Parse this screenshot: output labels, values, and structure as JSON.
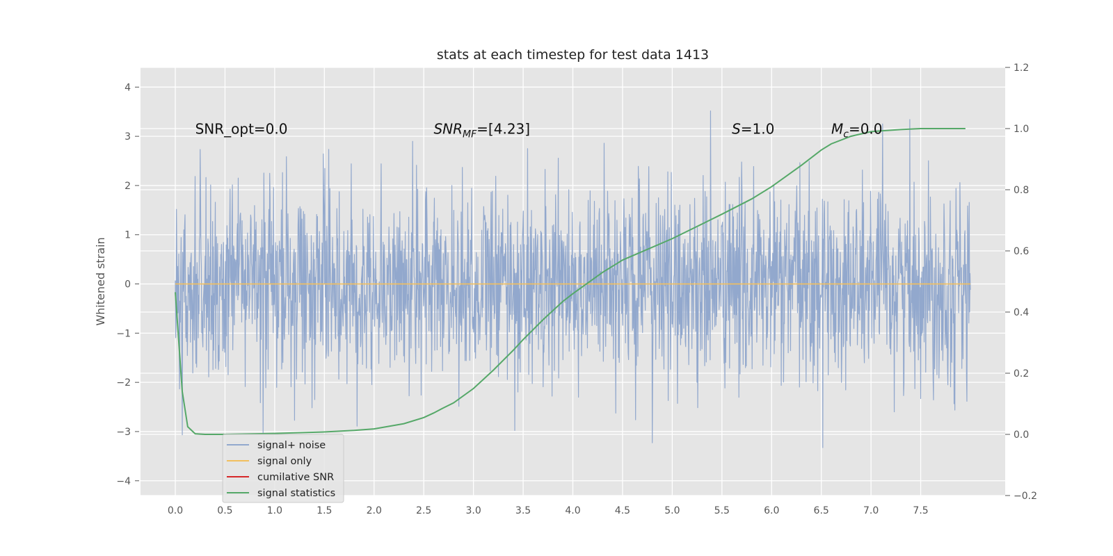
{
  "chart_data": {
    "type": "line",
    "title": "stats at each timestep for test data 1413",
    "ylabel": "Whitened strain",
    "xlim": [
      -0.35,
      8.35
    ],
    "ylim": [
      -4.3,
      4.4
    ],
    "y2lim": [
      -0.2,
      1.2
    ],
    "grid": true,
    "x_ticks": [
      "0.0",
      "0.5",
      "1.0",
      "1.5",
      "2.0",
      "2.5",
      "3.0",
      "3.5",
      "4.0",
      "4.5",
      "5.0",
      "5.5",
      "6.0",
      "6.5",
      "7.0",
      "7.5"
    ],
    "y_ticks": [
      "4",
      "3",
      "2",
      "1",
      "0",
      "−1",
      "−2",
      "−3",
      "−4"
    ],
    "y2_ticks": [
      "1.2",
      "1.0",
      "0.8",
      "0.6",
      "0.4",
      "0.2",
      "0.0",
      "−0.2"
    ],
    "annotations": [
      {
        "text": "SNR_opt=0.0",
        "x": 0.2,
        "y": 3.15
      },
      {
        "text": "SNR_MF=[4.23]",
        "x": 2.6,
        "y": 3.15,
        "main": "SNR",
        "sub": "MF",
        "rest": "=[4.23]"
      },
      {
        "text": "S=1.0",
        "x": 5.6,
        "y": 3.15,
        "main": "S",
        "sub": "",
        "rest": "=1.0"
      },
      {
        "text": "M_c=0.0",
        "x": 6.6,
        "y": 3.15,
        "main": "M",
        "sub": "c",
        "rest": "=0.0"
      }
    ],
    "series": [
      {
        "name": "signal+ noise",
        "axis": "left",
        "color": "#92a8cd",
        "noise_std": 1.0,
        "x_range": [
          0.0,
          8.0
        ],
        "description_samples": 2048
      },
      {
        "name": "signal only",
        "axis": "left",
        "color": "#f2bf5e",
        "x": [
          0.0,
          8.0
        ],
        "y": [
          0.0,
          0.0
        ]
      },
      {
        "name": "cumilative SNR",
        "axis": "right",
        "color": "#d62728",
        "x": [],
        "y": []
      },
      {
        "name": "signal statistics",
        "axis": "right",
        "color": "#55a868",
        "x": [
          0.0,
          0.07,
          0.125,
          0.2,
          0.3,
          0.5,
          1.0,
          1.5,
          1.8,
          2.0,
          2.3,
          2.5,
          2.6,
          2.7,
          2.8,
          3.0,
          3.2,
          3.4,
          3.5,
          3.7,
          3.9,
          4.0,
          4.3,
          4.5,
          5.0,
          5.5,
          5.8,
          6.0,
          6.3,
          6.5,
          6.6,
          6.8,
          7.0,
          7.3,
          7.5,
          7.95
        ],
        "y": [
          0.465,
          0.14,
          0.025,
          0.002,
          0.0,
          0.0,
          0.003,
          0.008,
          0.013,
          0.018,
          0.035,
          0.055,
          0.07,
          0.087,
          0.103,
          0.15,
          0.21,
          0.275,
          0.31,
          0.375,
          0.435,
          0.46,
          0.53,
          0.57,
          0.64,
          0.72,
          0.77,
          0.81,
          0.88,
          0.93,
          0.95,
          0.975,
          0.99,
          0.997,
          1.0,
          1.0
        ]
      }
    ],
    "legend": {
      "position": "lower-left",
      "entries": [
        {
          "label": "signal+ noise",
          "color": "#92a8cd"
        },
        {
          "label": "signal only",
          "color": "#f2bf5e"
        },
        {
          "label": "cumilative SNR",
          "color": "#d62728"
        },
        {
          "label": "signal statistics",
          "color": "#55a868"
        }
      ]
    },
    "colors": {
      "plot_background": "#e5e5e5",
      "grid": "#ffffff"
    }
  }
}
